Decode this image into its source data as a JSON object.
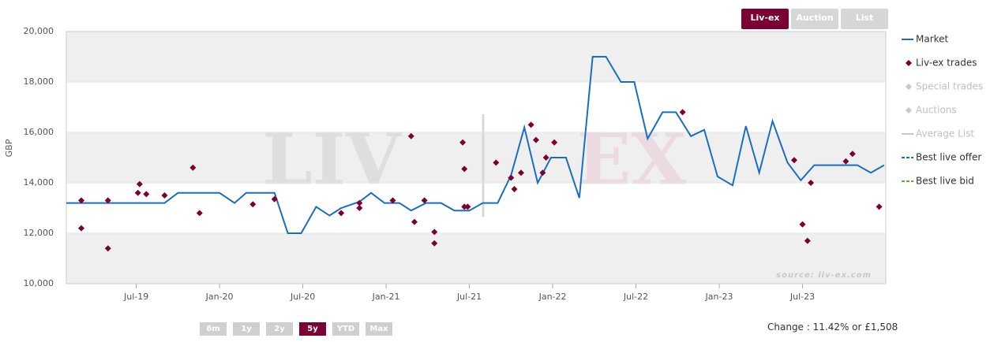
{
  "chart_data": {
    "type": "line",
    "ylabel": "GBP",
    "xlim": [
      2019.08,
      2024.0
    ],
    "xticks": [
      {
        "value": 2019.5,
        "label": "Jul-19"
      },
      {
        "value": 2020.0,
        "label": "Jan-20"
      },
      {
        "value": 2020.5,
        "label": "Jul-20"
      },
      {
        "value": 2021.0,
        "label": "Jan-21"
      },
      {
        "value": 2021.5,
        "label": "Jul-21"
      },
      {
        "value": 2022.0,
        "label": "Jan-22"
      },
      {
        "value": 2022.5,
        "label": "Jul-22"
      },
      {
        "value": 2023.0,
        "label": "Jan-23"
      },
      {
        "value": 2023.5,
        "label": "Jul-23"
      }
    ],
    "ylim": [
      10000,
      20000
    ],
    "yticks": [
      {
        "value": 10000,
        "label": "10,000"
      },
      {
        "value": 12000,
        "label": "12,000"
      },
      {
        "value": 14000,
        "label": "14,000"
      },
      {
        "value": 16000,
        "label": "16,000"
      },
      {
        "value": 18000,
        "label": "18,000"
      },
      {
        "value": 20000,
        "label": "20,000"
      }
    ],
    "plot_bands": true,
    "series": [
      {
        "name": "Market",
        "type": "line",
        "color": "#1a6fbf",
        "x": [
          2019.08,
          2019.67,
          2019.75,
          2020.0,
          2020.09,
          2020.16,
          2020.33,
          2020.41,
          2020.49,
          2020.58,
          2020.66,
          2020.73,
          2020.84,
          2020.91,
          2020.99,
          2021.08,
          2021.15,
          2021.24,
          2021.33,
          2021.41,
          2021.5,
          2021.58,
          2021.67,
          2021.75,
          2021.83,
          2021.91,
          2021.99,
          2022.08,
          2022.16,
          2022.24,
          2022.32,
          2022.41,
          2022.49,
          2022.57,
          2022.66,
          2022.74,
          2022.83,
          2022.91,
          2022.99,
          2023.08,
          2023.16,
          2023.24,
          2023.32,
          2023.41,
          2023.49,
          2023.57,
          2023.83,
          2023.91,
          2023.99
        ],
        "values": [
          13200,
          13200,
          13600,
          13600,
          13200,
          13600,
          13600,
          12000,
          12000,
          13050,
          12700,
          13000,
          13250,
          13600,
          13200,
          13200,
          12900,
          13200,
          13200,
          12900,
          12900,
          13200,
          13200,
          14300,
          16200,
          14000,
          15000,
          15000,
          13400,
          19000,
          19000,
          18000,
          18000,
          15750,
          16800,
          16800,
          15850,
          16100,
          14250,
          13900,
          16250,
          14400,
          16450,
          14800,
          14100,
          14700,
          14700,
          14400,
          14700
        ]
      },
      {
        "name": "Liv-ex trades",
        "type": "scatter",
        "color": "#7b0034",
        "x": [
          2019.17,
          2019.17,
          2019.33,
          2019.33,
          2019.52,
          2019.51,
          2019.56,
          2019.67,
          2019.84,
          2019.88,
          2020.2,
          2020.33,
          2020.73,
          2020.84,
          2020.84,
          2021.04,
          2021.15,
          2021.17,
          2021.23,
          2021.29,
          2021.29,
          2021.46,
          2021.47,
          2021.47,
          2021.49,
          2021.66,
          2021.75,
          2021.77,
          2021.81,
          2021.87,
          2021.9,
          2021.94,
          2021.96,
          2022.01,
          2022.78,
          2023.45,
          2023.5,
          2023.55,
          2023.53,
          2023.76,
          2023.8,
          2023.96
        ],
        "values": [
          12200,
          13300,
          11400,
          13300,
          13950,
          13600,
          13550,
          13500,
          14600,
          12800,
          13150,
          13350,
          12800,
          13000,
          13200,
          13300,
          15850,
          12450,
          13300,
          12050,
          11600,
          15600,
          14550,
          13050,
          13050,
          14800,
          14200,
          13750,
          14400,
          16300,
          15700,
          14400,
          15000,
          15600,
          16800,
          14900,
          12350,
          14000,
          11700,
          14850,
          15150,
          13050
        ]
      }
    ],
    "legend_extra": [
      {
        "name": "Special trades",
        "color": "#c8c8c8",
        "marker": "diamond"
      },
      {
        "name": "Auctions",
        "color": "#c8c8c8",
        "marker": "diamond"
      },
      {
        "name": "Average List",
        "color": "#c8c8c8",
        "marker": "line"
      },
      {
        "name": "Best live offer",
        "color": "#1a6fbf",
        "marker": "dash"
      },
      {
        "name": "Best live bid",
        "color": "#58b232",
        "marker": "dash"
      }
    ],
    "watermark": [
      "LIV",
      "EX"
    ],
    "source": "source: liv-ex.com"
  },
  "controls": {
    "views": [
      "Liv-ex",
      "Auction",
      "List"
    ],
    "active_view": 0,
    "ranges": [
      "6m",
      "1y",
      "2y",
      "5y",
      "YTD",
      "Max"
    ],
    "active_range": 3,
    "change": "Change : 11.42% or £1,508"
  }
}
